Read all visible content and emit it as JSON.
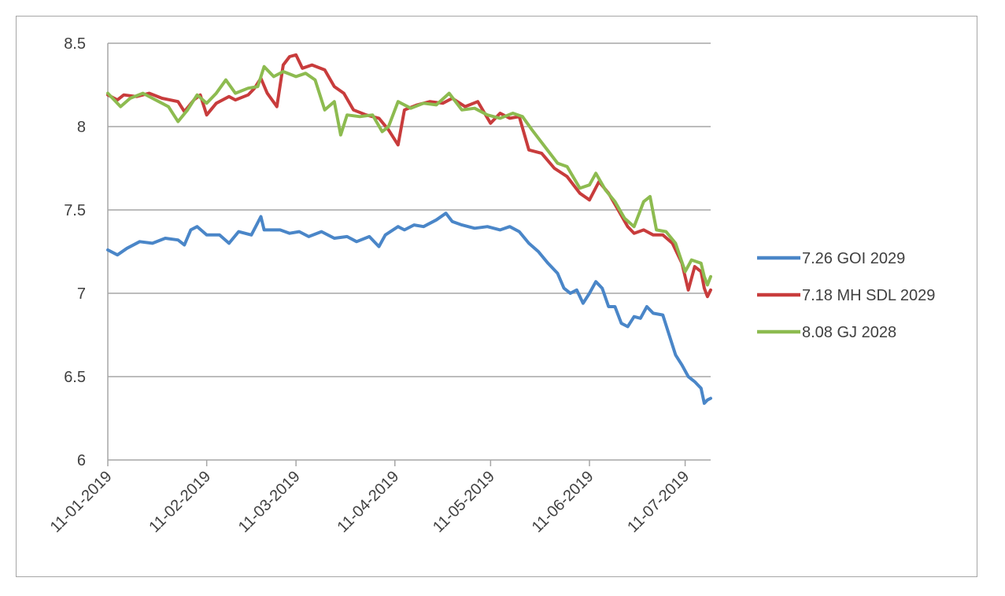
{
  "chart_data": {
    "type": "line",
    "title": "",
    "xlabel": "",
    "ylabel": "",
    "ylim": [
      6,
      8.5
    ],
    "yticks": [
      "8.5",
      "8",
      "7.5",
      "7",
      "6.5",
      "6"
    ],
    "xlim": [
      "11-01-2019",
      "19-07-2019"
    ],
    "xticks": [
      "11-01-2019",
      "11-02-2019",
      "11-03-2019",
      "11-04-2019",
      "11-05-2019",
      "11-06-2019",
      "11-07-2019"
    ],
    "grid": "horizontal",
    "legend_position": "right",
    "series": [
      {
        "name": "7.26 GOI 2029",
        "color": "#4a86c8",
        "points": [
          [
            "11-01-2019",
            7.26
          ],
          [
            "14-01-2019",
            7.23
          ],
          [
            "17-01-2019",
            7.27
          ],
          [
            "21-01-2019",
            7.31
          ],
          [
            "25-01-2019",
            7.3
          ],
          [
            "29-01-2019",
            7.33
          ],
          [
            "02-02-2019",
            7.32
          ],
          [
            "04-02-2019",
            7.29
          ],
          [
            "06-02-2019",
            7.38
          ],
          [
            "08-02-2019",
            7.4
          ],
          [
            "11-02-2019",
            7.35
          ],
          [
            "15-02-2019",
            7.35
          ],
          [
            "18-02-2019",
            7.3
          ],
          [
            "21-02-2019",
            7.37
          ],
          [
            "25-02-2019",
            7.35
          ],
          [
            "28-02-2019",
            7.46
          ],
          [
            "01-03-2019",
            7.38
          ],
          [
            "06-03-2019",
            7.38
          ],
          [
            "09-03-2019",
            7.36
          ],
          [
            "12-03-2019",
            7.37
          ],
          [
            "15-03-2019",
            7.34
          ],
          [
            "19-03-2019",
            7.37
          ],
          [
            "23-03-2019",
            7.33
          ],
          [
            "27-03-2019",
            7.34
          ],
          [
            "30-03-2019",
            7.31
          ],
          [
            "03-04-2019",
            7.34
          ],
          [
            "06-04-2019",
            7.28
          ],
          [
            "08-04-2019",
            7.35
          ],
          [
            "12-04-2019",
            7.4
          ],
          [
            "14-04-2019",
            7.38
          ],
          [
            "17-04-2019",
            7.41
          ],
          [
            "20-04-2019",
            7.4
          ],
          [
            "24-04-2019",
            7.44
          ],
          [
            "27-04-2019",
            7.48
          ],
          [
            "29-04-2019",
            7.43
          ],
          [
            "02-05-2019",
            7.41
          ],
          [
            "06-05-2019",
            7.39
          ],
          [
            "10-05-2019",
            7.4
          ],
          [
            "14-05-2019",
            7.38
          ],
          [
            "17-05-2019",
            7.4
          ],
          [
            "20-05-2019",
            7.37
          ],
          [
            "23-05-2019",
            7.3
          ],
          [
            "26-05-2019",
            7.25
          ],
          [
            "29-05-2019",
            7.18
          ],
          [
            "01-06-2019",
            7.12
          ],
          [
            "03-06-2019",
            7.03
          ],
          [
            "05-06-2019",
            7.0
          ],
          [
            "07-06-2019",
            7.02
          ],
          [
            "09-06-2019",
            6.94
          ],
          [
            "11-06-2019",
            7.0
          ],
          [
            "13-06-2019",
            7.07
          ],
          [
            "15-06-2019",
            7.03
          ],
          [
            "17-06-2019",
            6.92
          ],
          [
            "19-06-2019",
            6.92
          ],
          [
            "21-06-2019",
            6.82
          ],
          [
            "23-06-2019",
            6.8
          ],
          [
            "25-06-2019",
            6.86
          ],
          [
            "27-06-2019",
            6.85
          ],
          [
            "29-06-2019",
            6.92
          ],
          [
            "01-07-2019",
            6.88
          ],
          [
            "04-07-2019",
            6.87
          ],
          [
            "06-07-2019",
            6.75
          ],
          [
            "08-07-2019",
            6.63
          ],
          [
            "10-07-2019",
            6.57
          ],
          [
            "12-07-2019",
            6.5
          ],
          [
            "14-07-2019",
            6.47
          ],
          [
            "16-07-2019",
            6.43
          ],
          [
            "17-07-2019",
            6.34
          ],
          [
            "18-07-2019",
            6.36
          ],
          [
            "19-07-2019",
            6.37
          ]
        ]
      },
      {
        "name": "7.18 MH SDL 2029",
        "color": "#c83c3c",
        "points": [
          [
            "11-01-2019",
            8.19
          ],
          [
            "14-01-2019",
            8.16
          ],
          [
            "16-01-2019",
            8.19
          ],
          [
            "20-01-2019",
            8.18
          ],
          [
            "24-01-2019",
            8.2
          ],
          [
            "28-01-2019",
            8.17
          ],
          [
            "02-02-2019",
            8.15
          ],
          [
            "04-02-2019",
            8.09
          ],
          [
            "07-02-2019",
            8.16
          ],
          [
            "09-02-2019",
            8.19
          ],
          [
            "11-02-2019",
            8.07
          ],
          [
            "14-02-2019",
            8.14
          ],
          [
            "18-02-2019",
            8.18
          ],
          [
            "20-02-2019",
            8.16
          ],
          [
            "24-02-2019",
            8.19
          ],
          [
            "26-02-2019",
            8.23
          ],
          [
            "28-02-2019",
            8.29
          ],
          [
            "02-03-2019",
            8.2
          ],
          [
            "05-03-2019",
            8.12
          ],
          [
            "07-03-2019",
            8.37
          ],
          [
            "09-03-2019",
            8.42
          ],
          [
            "11-03-2019",
            8.43
          ],
          [
            "13-03-2019",
            8.35
          ],
          [
            "16-03-2019",
            8.37
          ],
          [
            "20-03-2019",
            8.34
          ],
          [
            "23-03-2019",
            8.24
          ],
          [
            "26-03-2019",
            8.2
          ],
          [
            "29-03-2019",
            8.1
          ],
          [
            "02-04-2019",
            8.07
          ],
          [
            "06-04-2019",
            8.05
          ],
          [
            "09-04-2019",
            7.98
          ],
          [
            "12-04-2019",
            7.89
          ],
          [
            "14-04-2019",
            8.1
          ],
          [
            "18-04-2019",
            8.13
          ],
          [
            "22-04-2019",
            8.15
          ],
          [
            "26-04-2019",
            8.14
          ],
          [
            "29-04-2019",
            8.17
          ],
          [
            "03-05-2019",
            8.12
          ],
          [
            "07-05-2019",
            8.15
          ],
          [
            "11-05-2019",
            8.02
          ],
          [
            "14-05-2019",
            8.08
          ],
          [
            "17-05-2019",
            8.05
          ],
          [
            "20-05-2019",
            8.06
          ],
          [
            "23-05-2019",
            7.86
          ],
          [
            "27-05-2019",
            7.84
          ],
          [
            "31-05-2019",
            7.75
          ],
          [
            "04-06-2019",
            7.7
          ],
          [
            "08-06-2019",
            7.6
          ],
          [
            "11-06-2019",
            7.56
          ],
          [
            "14-06-2019",
            7.67
          ],
          [
            "17-06-2019",
            7.6
          ],
          [
            "20-06-2019",
            7.5
          ],
          [
            "23-06-2019",
            7.4
          ],
          [
            "25-06-2019",
            7.36
          ],
          [
            "28-06-2019",
            7.38
          ],
          [
            "01-07-2019",
            7.35
          ],
          [
            "04-07-2019",
            7.35
          ],
          [
            "07-07-2019",
            7.3
          ],
          [
            "10-07-2019",
            7.18
          ],
          [
            "12-07-2019",
            7.02
          ],
          [
            "14-07-2019",
            7.16
          ],
          [
            "16-07-2019",
            7.13
          ],
          [
            "17-07-2019",
            7.03
          ],
          [
            "18-07-2019",
            6.98
          ],
          [
            "19-07-2019",
            7.02
          ]
        ]
      },
      {
        "name": "8.08 GJ 2028",
        "color": "#8dbb50",
        "points": [
          [
            "11-01-2019",
            8.2
          ],
          [
            "13-01-2019",
            8.16
          ],
          [
            "15-01-2019",
            8.12
          ],
          [
            "18-01-2019",
            8.17
          ],
          [
            "22-01-2019",
            8.2
          ],
          [
            "26-01-2019",
            8.16
          ],
          [
            "30-01-2019",
            8.12
          ],
          [
            "02-02-2019",
            8.03
          ],
          [
            "05-02-2019",
            8.1
          ],
          [
            "08-02-2019",
            8.19
          ],
          [
            "11-02-2019",
            8.14
          ],
          [
            "14-02-2019",
            8.2
          ],
          [
            "17-02-2019",
            8.28
          ],
          [
            "20-02-2019",
            8.2
          ],
          [
            "24-02-2019",
            8.23
          ],
          [
            "27-02-2019",
            8.24
          ],
          [
            "01-03-2019",
            8.36
          ],
          [
            "04-03-2019",
            8.3
          ],
          [
            "07-03-2019",
            8.33
          ],
          [
            "11-03-2019",
            8.3
          ],
          [
            "14-03-2019",
            8.32
          ],
          [
            "17-03-2019",
            8.28
          ],
          [
            "20-03-2019",
            8.1
          ],
          [
            "23-03-2019",
            8.15
          ],
          [
            "25-03-2019",
            7.95
          ],
          [
            "27-03-2019",
            8.07
          ],
          [
            "31-03-2019",
            8.06
          ],
          [
            "04-04-2019",
            8.07
          ],
          [
            "07-04-2019",
            7.97
          ],
          [
            "09-04-2019",
            8.0
          ],
          [
            "12-04-2019",
            8.15
          ],
          [
            "16-04-2019",
            8.11
          ],
          [
            "20-04-2019",
            8.14
          ],
          [
            "24-04-2019",
            8.13
          ],
          [
            "28-04-2019",
            8.2
          ],
          [
            "02-05-2019",
            8.1
          ],
          [
            "06-05-2019",
            8.11
          ],
          [
            "10-05-2019",
            8.07
          ],
          [
            "14-05-2019",
            8.05
          ],
          [
            "18-05-2019",
            8.08
          ],
          [
            "21-05-2019",
            8.06
          ],
          [
            "24-05-2019",
            7.98
          ],
          [
            "28-05-2019",
            7.88
          ],
          [
            "01-06-2019",
            7.78
          ],
          [
            "04-06-2019",
            7.76
          ],
          [
            "08-06-2019",
            7.63
          ],
          [
            "11-06-2019",
            7.65
          ],
          [
            "13-06-2019",
            7.72
          ],
          [
            "16-06-2019",
            7.62
          ],
          [
            "19-06-2019",
            7.55
          ],
          [
            "22-06-2019",
            7.45
          ],
          [
            "25-06-2019",
            7.4
          ],
          [
            "28-06-2019",
            7.55
          ],
          [
            "30-06-2019",
            7.58
          ],
          [
            "02-07-2019",
            7.38
          ],
          [
            "05-07-2019",
            7.37
          ],
          [
            "08-07-2019",
            7.3
          ],
          [
            "11-07-2019",
            7.13
          ],
          [
            "13-07-2019",
            7.2
          ],
          [
            "16-07-2019",
            7.18
          ],
          [
            "17-07-2019",
            7.1
          ],
          [
            "18-07-2019",
            7.05
          ],
          [
            "19-07-2019",
            7.1
          ]
        ]
      }
    ]
  }
}
